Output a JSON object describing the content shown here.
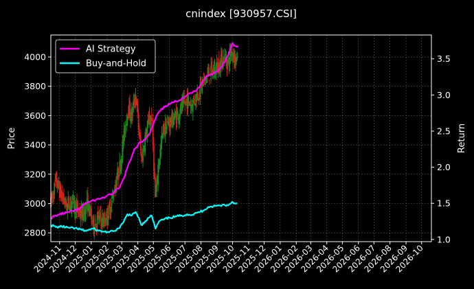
{
  "chart_data": {
    "type": "line",
    "title": "cnindex [930957.CSI]",
    "left_axis": {
      "label": "Price",
      "ylim": [
        2740,
        4150
      ],
      "ticks": [
        2800,
        3000,
        3200,
        3400,
        3600,
        3800,
        4000
      ]
    },
    "right_axis": {
      "label": "Return",
      "ylim": [
        0.97,
        3.83
      ],
      "ticks": [
        1.0,
        1.5,
        2.0,
        2.5,
        3.0,
        3.5
      ],
      "tick_labels": [
        "1.0",
        "1.5",
        "2.0",
        "2.5",
        "3.0",
        "3.5"
      ]
    },
    "x_axis": {
      "start": "2024-10-15",
      "end": "2026-10-20",
      "tick_labels": [
        "2024-11",
        "2024-12",
        "2025-01",
        "2025-02",
        "2025-03",
        "2025-04",
        "2025-05",
        "2025-06",
        "2025-07",
        "2025-08",
        "2025-09",
        "2025-10",
        "2025-11",
        "2025-12",
        "2026-01",
        "2026-02",
        "2026-03",
        "2026-04",
        "2026-05",
        "2026-06",
        "2026-07",
        "2026-08",
        "2026-09",
        "2026-10"
      ]
    },
    "grid": true,
    "legend": {
      "placement": "top-left"
    },
    "price_series": {
      "name": "Price (candlestick)",
      "points": [
        [
          "2024-10-15",
          3000
        ],
        [
          "2024-10-25",
          3150
        ],
        [
          "2024-11-05",
          3050
        ],
        [
          "2024-11-15",
          2980
        ],
        [
          "2024-11-25",
          3020
        ],
        [
          "2024-12-05",
          2950
        ],
        [
          "2024-12-15",
          2920
        ],
        [
          "2024-12-25",
          3000
        ],
        [
          "2025-01-05",
          2850
        ],
        [
          "2025-01-15",
          2900
        ],
        [
          "2025-01-25",
          2870
        ],
        [
          "2025-02-05",
          2950
        ],
        [
          "2025-02-15",
          3100
        ],
        [
          "2025-02-25",
          3250
        ],
        [
          "2025-03-05",
          3450
        ],
        [
          "2025-03-12",
          3650
        ],
        [
          "2025-03-20",
          3600
        ],
        [
          "2025-03-28",
          3750
        ],
        [
          "2025-04-03",
          3500
        ],
        [
          "2025-04-08",
          3300
        ],
        [
          "2025-04-15",
          3450
        ],
        [
          "2025-04-22",
          3550
        ],
        [
          "2025-04-28",
          3600
        ],
        [
          "2025-05-05",
          3000
        ],
        [
          "2025-05-10",
          3250
        ],
        [
          "2025-05-20",
          3500
        ],
        [
          "2025-06-01",
          3550
        ],
        [
          "2025-06-15",
          3600
        ],
        [
          "2025-06-25",
          3650
        ],
        [
          "2025-07-05",
          3700
        ],
        [
          "2025-07-15",
          3680
        ],
        [
          "2025-07-25",
          3750
        ],
        [
          "2025-08-05",
          3820
        ],
        [
          "2025-08-15",
          3880
        ],
        [
          "2025-08-25",
          3900
        ],
        [
          "2025-09-05",
          3950
        ],
        [
          "2025-09-15",
          4000
        ],
        [
          "2025-09-22",
          3960
        ],
        [
          "2025-09-30",
          4050
        ],
        [
          "2025-10-05",
          4000
        ],
        [
          "2025-10-10",
          3980
        ]
      ]
    },
    "series": [
      {
        "name": "AI Strategy",
        "color": "#ff00ff",
        "axis": "right",
        "points": [
          [
            "2024-10-15",
            1.3
          ],
          [
            "2024-11-01",
            1.35
          ],
          [
            "2024-11-20",
            1.38
          ],
          [
            "2024-12-10",
            1.42
          ],
          [
            "2024-12-20",
            1.5
          ],
          [
            "2025-01-10",
            1.55
          ],
          [
            "2025-01-25",
            1.58
          ],
          [
            "2025-02-10",
            1.63
          ],
          [
            "2025-02-25",
            1.72
          ],
          [
            "2025-03-05",
            1.85
          ],
          [
            "2025-03-12",
            2.0
          ],
          [
            "2025-03-18",
            2.1
          ],
          [
            "2025-03-25",
            2.25
          ],
          [
            "2025-04-01",
            2.3
          ],
          [
            "2025-04-05",
            2.35
          ],
          [
            "2025-04-15",
            2.38
          ],
          [
            "2025-04-25",
            2.48
          ],
          [
            "2025-05-01",
            2.6
          ],
          [
            "2025-05-10",
            2.75
          ],
          [
            "2025-05-25",
            2.85
          ],
          [
            "2025-06-10",
            2.9
          ],
          [
            "2025-06-25",
            2.95
          ],
          [
            "2025-07-05",
            3.0
          ],
          [
            "2025-07-20",
            3.05
          ],
          [
            "2025-08-01",
            3.15
          ],
          [
            "2025-08-10",
            3.25
          ],
          [
            "2025-08-25",
            3.3
          ],
          [
            "2025-09-05",
            3.35
          ],
          [
            "2025-09-15",
            3.45
          ],
          [
            "2025-09-22",
            3.55
          ],
          [
            "2025-09-27",
            3.65
          ],
          [
            "2025-10-01",
            3.72
          ],
          [
            "2025-10-03",
            3.68
          ],
          [
            "2025-10-08",
            3.67
          ],
          [
            "2025-10-12",
            3.67
          ]
        ]
      },
      {
        "name": "Buy-and-Hold",
        "color": "#00ffff",
        "axis": "right",
        "points": [
          [
            "2024-10-15",
            1.2
          ],
          [
            "2024-10-25",
            1.17
          ],
          [
            "2024-11-05",
            1.18
          ],
          [
            "2024-11-20",
            1.16
          ],
          [
            "2024-12-05",
            1.15
          ],
          [
            "2024-12-20",
            1.12
          ],
          [
            "2025-01-05",
            1.15
          ],
          [
            "2025-01-15",
            1.12
          ],
          [
            "2025-01-25",
            1.11
          ],
          [
            "2025-02-05",
            1.1
          ],
          [
            "2025-02-15",
            1.12
          ],
          [
            "2025-02-25",
            1.16
          ],
          [
            "2025-03-05",
            1.25
          ],
          [
            "2025-03-12",
            1.35
          ],
          [
            "2025-03-20",
            1.33
          ],
          [
            "2025-03-28",
            1.38
          ],
          [
            "2025-04-03",
            1.3
          ],
          [
            "2025-04-08",
            1.2
          ],
          [
            "2025-04-15",
            1.25
          ],
          [
            "2025-04-22",
            1.3
          ],
          [
            "2025-04-28",
            1.33
          ],
          [
            "2025-05-05",
            1.15
          ],
          [
            "2025-05-12",
            1.25
          ],
          [
            "2025-05-22",
            1.28
          ],
          [
            "2025-06-01",
            1.3
          ],
          [
            "2025-06-15",
            1.32
          ],
          [
            "2025-06-25",
            1.33
          ],
          [
            "2025-07-05",
            1.35
          ],
          [
            "2025-07-15",
            1.34
          ],
          [
            "2025-07-25",
            1.37
          ],
          [
            "2025-08-05",
            1.4
          ],
          [
            "2025-08-15",
            1.45
          ],
          [
            "2025-08-25",
            1.46
          ],
          [
            "2025-09-05",
            1.47
          ],
          [
            "2025-09-15",
            1.48
          ],
          [
            "2025-09-22",
            1.47
          ],
          [
            "2025-09-30",
            1.52
          ],
          [
            "2025-10-05",
            1.5
          ],
          [
            "2025-10-10",
            1.5
          ]
        ]
      }
    ]
  }
}
